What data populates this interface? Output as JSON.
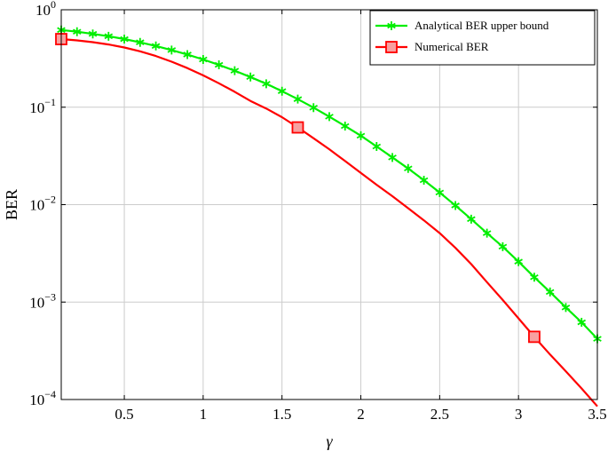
{
  "chart_data": {
    "type": "line",
    "xlabel": "γ",
    "ylabel": "BER",
    "xlim": [
      0.1,
      3.5
    ],
    "ylim": [
      0.0001,
      1
    ],
    "yscale": "log",
    "grid": true,
    "legend_position": "top-right",
    "x_ticks": [
      {
        "value": 0.5,
        "label": "0.5"
      },
      {
        "value": 1,
        "label": "1"
      },
      {
        "value": 1.5,
        "label": "1.5"
      },
      {
        "value": 2,
        "label": "2"
      },
      {
        "value": 2.5,
        "label": "2.5"
      },
      {
        "value": 3,
        "label": "3"
      },
      {
        "value": 3.5,
        "label": "3.5"
      }
    ],
    "y_ticks": [
      {
        "value": 1,
        "base": "10",
        "exp": "0"
      },
      {
        "value": 0.1,
        "base": "10",
        "exp": "−1"
      },
      {
        "value": 0.01,
        "base": "10",
        "exp": "−2"
      },
      {
        "value": 0.001,
        "base": "10",
        "exp": "−3"
      },
      {
        "value": 0.0001,
        "base": "10",
        "exp": "−4"
      }
    ],
    "series": [
      {
        "name": "Analytical BER upper bound",
        "color": "#00ee00",
        "marker": "star",
        "x": [
          0.1,
          0.2,
          0.3,
          0.4,
          0.5,
          0.6,
          0.7,
          0.8,
          0.9,
          1.0,
          1.1,
          1.2,
          1.3,
          1.4,
          1.5,
          1.6,
          1.7,
          1.8,
          1.9,
          2.0,
          2.1,
          2.2,
          2.3,
          2.4,
          2.5,
          2.6,
          2.7,
          2.8,
          2.9,
          3.0,
          3.1,
          3.2,
          3.3,
          3.4,
          3.5
        ],
        "y": [
          0.62,
          0.595,
          0.565,
          0.535,
          0.5,
          0.463,
          0.425,
          0.386,
          0.347,
          0.309,
          0.272,
          0.237,
          0.204,
          0.174,
          0.146,
          0.121,
          0.099,
          0.08,
          0.064,
          0.051,
          0.0395,
          0.0305,
          0.0235,
          0.0178,
          0.0133,
          0.0098,
          0.0071,
          0.0051,
          0.0037,
          0.0026,
          0.0018,
          0.00127,
          0.00088,
          0.00062,
          0.00042
        ]
      },
      {
        "name": "Numerical BER",
        "color": "#ff0000",
        "marker": "square",
        "x": [
          0.1,
          0.2,
          0.3,
          0.4,
          0.5,
          0.6,
          0.7,
          0.8,
          0.9,
          1.0,
          1.1,
          1.2,
          1.3,
          1.4,
          1.5,
          1.6,
          1.7,
          1.8,
          1.9,
          2.0,
          2.1,
          2.2,
          2.3,
          2.4,
          2.5,
          2.6,
          2.7,
          2.8,
          2.9,
          3.0,
          3.1,
          3.2,
          3.3,
          3.4,
          3.5
        ],
        "y": [
          0.5,
          0.485,
          0.465,
          0.44,
          0.41,
          0.375,
          0.335,
          0.293,
          0.252,
          0.212,
          0.176,
          0.144,
          0.116,
          0.097,
          0.079,
          0.062,
          0.048,
          0.037,
          0.028,
          0.0212,
          0.016,
          0.0122,
          0.0092,
          0.0069,
          0.0051,
          0.0036,
          0.00245,
          0.0016,
          0.00105,
          0.00068,
          0.00044,
          0.00029,
          0.000195,
          0.00013,
          8.5e-05
        ],
        "marker_x": [
          0.1,
          1.6,
          3.1
        ]
      }
    ]
  }
}
